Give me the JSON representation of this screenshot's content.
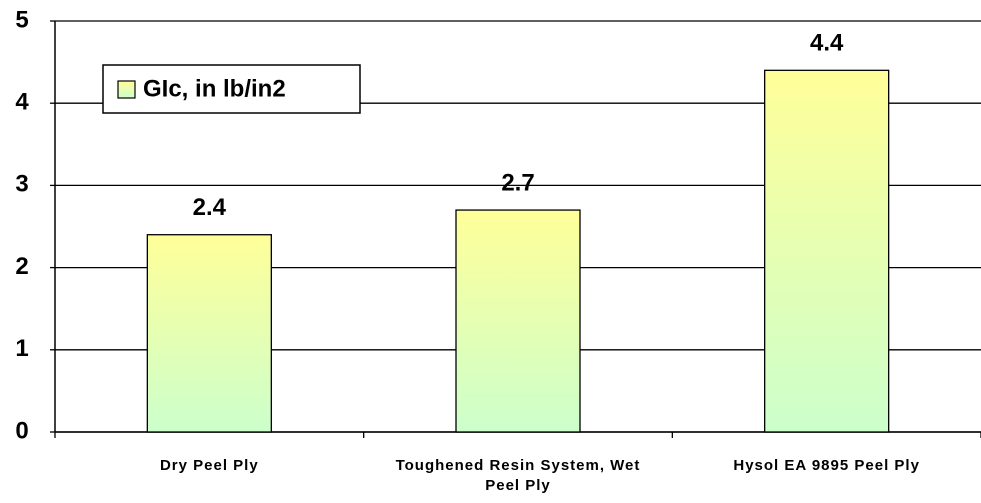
{
  "chart_data": {
    "type": "bar",
    "categories": [
      "Dry Peel Ply",
      "Toughened Resin System, Wet Peel Ply",
      "Hysol EA 9895 Peel Ply"
    ],
    "series": [
      {
        "name": "GIc, in lb/in2",
        "color": [
          "#ffff99",
          "#ccffcc"
        ],
        "values": [
          2.4,
          2.7,
          4.4
        ]
      }
    ],
    "ylim": [
      0,
      5
    ],
    "yticks": [
      0,
      1,
      2,
      3,
      4,
      5
    ],
    "grid": true,
    "legend": "upper left"
  }
}
